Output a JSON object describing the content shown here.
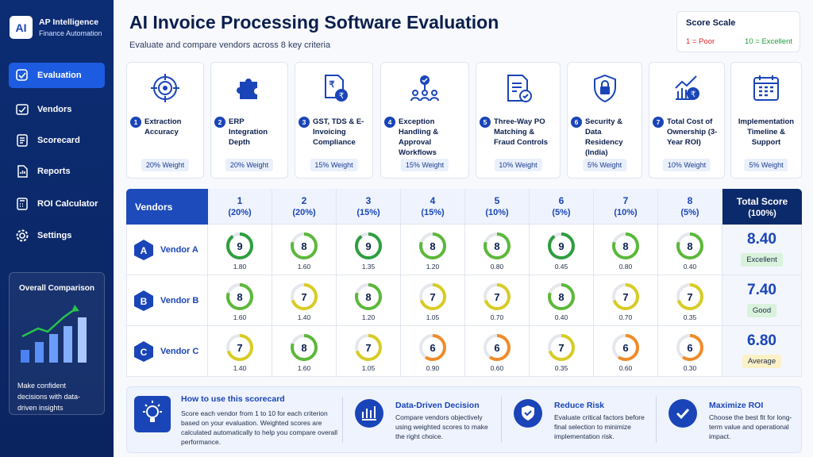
{
  "sidebar": {
    "logo": "AI",
    "title": "AP Intelligence",
    "subtitle": "Finance Automation",
    "nav": [
      "Evaluation",
      "Vendors",
      "Scorecard",
      "Reports",
      "ROI Calculator",
      "Settings"
    ],
    "promo": {
      "title": "Overall Comparison",
      "text": "Make confident decisions with data-driven insights"
    }
  },
  "header": {
    "title": "AI Invoice Processing Software Evaluation",
    "subtitle": "Evaluate and compare vendors across 8 key criteria"
  },
  "score_scale": {
    "title": "Score Scale",
    "low": {
      "value": 1,
      "label": "1 = Poor"
    },
    "high": {
      "value": 10,
      "label": "10 = Excellent"
    }
  },
  "criteria": [
    {
      "number": 1,
      "label": "Extraction Accuracy",
      "weight": "20% Weight"
    },
    {
      "number": 2,
      "label": "ERP Integration Depth",
      "weight": "20% Weight"
    },
    {
      "number": 3,
      "label": "GST, TDS & E-Invoicing Compliance",
      "weight": "15% Weight"
    },
    {
      "number": 4,
      "label": "Exception Handling & Approval Workflows",
      "weight": "15% Weight"
    },
    {
      "number": 5,
      "label": "Three-Way PO Matching & Fraud Controls",
      "weight": "10% Weight"
    },
    {
      "number": 6,
      "label": "Security & Data Residency (India)",
      "weight": "5% Weight"
    },
    {
      "number": 7,
      "label": "Total Cost of Ownership (3-Year ROI)",
      "weight": "10% Weight"
    },
    {
      "label": "Implementation Timeline & Support",
      "weight": "5% Weight"
    }
  ],
  "table": {
    "vendor_header": "Vendors",
    "total_header": "Total Score",
    "total_weight": "(100%)",
    "columns": [
      {
        "number": 1,
        "weight": "(20%)"
      },
      {
        "number": 2,
        "weight": "(20%)"
      },
      {
        "number": 3,
        "weight": "(15%)"
      },
      {
        "number": 4,
        "weight": "(15%)"
      },
      {
        "number": 5,
        "weight": "(10%)"
      },
      {
        "number": 6,
        "weight": "(5%)"
      },
      {
        "number": 7,
        "weight": "(10%)"
      },
      {
        "number": 8,
        "weight": "(5%)"
      }
    ],
    "rows": [
      {
        "letter": "A",
        "name": "Vendor A",
        "scores": [
          9,
          8,
          9,
          8,
          8,
          9,
          8,
          8
        ],
        "colors": [
          "#2e9e3e",
          "#5cb83a",
          "#2e9e3e",
          "#5cb83a",
          "#5cb83a",
          "#2e9e3e",
          "#5cb83a",
          "#5cb83a"
        ],
        "weighted": [
          "1.80",
          "1.60",
          "1.35",
          "1.20",
          "0.80",
          "0.45",
          "0.80",
          "0.40"
        ],
        "total": "8.40",
        "rating": "Excellent",
        "rating_color": "#d9f2dc"
      },
      {
        "letter": "B",
        "name": "Vendor B",
        "scores": [
          8,
          7,
          8,
          7,
          7,
          8,
          7,
          7
        ],
        "colors": [
          "#5cb83a",
          "#d8cc25",
          "#5cb83a",
          "#d8cc25",
          "#d8cc25",
          "#5cb83a",
          "#d8cc25",
          "#d8cc25"
        ],
        "weighted": [
          "1.60",
          "1.40",
          "1.20",
          "1.05",
          "0.70",
          "0.40",
          "0.70",
          "0.35"
        ],
        "total": "7.40",
        "rating": "Good",
        "rating_color": "#d9f2dc"
      },
      {
        "letter": "C",
        "name": "Vendor C",
        "scores": [
          7,
          8,
          7,
          6,
          6,
          7,
          6,
          6
        ],
        "colors": [
          "#d8cc25",
          "#5cb83a",
          "#d8cc25",
          "#f08c2a",
          "#f08c2a",
          "#d8cc25",
          "#f08c2a",
          "#f08c2a"
        ],
        "weighted": [
          "1.40",
          "1.60",
          "1.05",
          "0.90",
          "0.60",
          "0.35",
          "0.60",
          "0.30"
        ],
        "total": "6.80",
        "rating": "Average",
        "rating_color": "#fbf1c7"
      }
    ]
  },
  "footer": {
    "how_to": {
      "title": "How to use this scorecard",
      "text": "Score each vendor from 1 to 10 for each criterion based on your evaluation. Weighted scores are calculated automatically to help you compare overall performance."
    },
    "features": [
      {
        "title": "Data-Driven Decision",
        "text": "Compare vendors objectively using weighted scores to make the right choice."
      },
      {
        "title": "Reduce Risk",
        "text": "Evaluate critical factors before final selection to minimize implementation risk."
      },
      {
        "title": "Maximize ROI",
        "text": "Choose the best fit for long-term value and operational impact."
      }
    ]
  }
}
